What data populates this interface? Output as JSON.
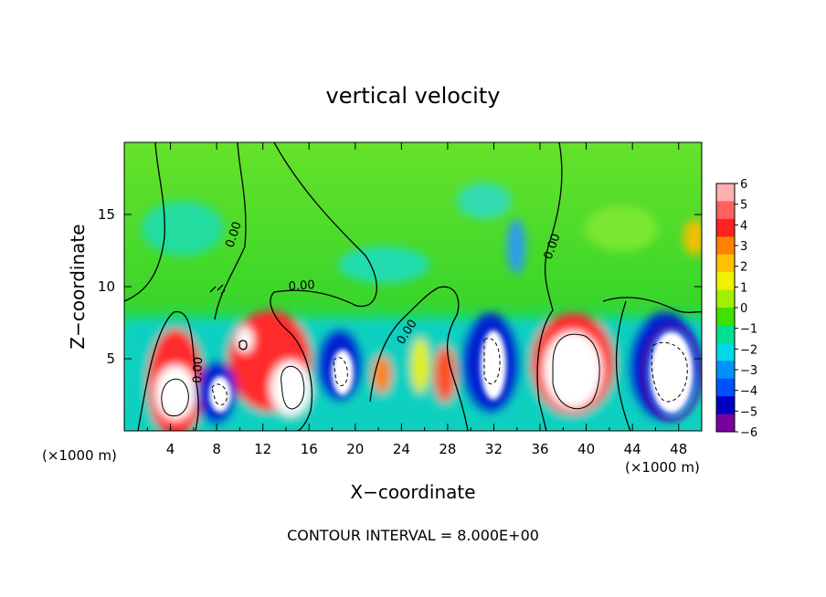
{
  "chart_data": {
    "type": "heatmap",
    "title": "vertical velocity",
    "xlabel": "X−coordinate",
    "ylabel": "Z−coordinate",
    "x_unit_left": "(×1000 m)",
    "x_unit_right": "(×1000 m)",
    "x_ticks": [
      "4",
      "8",
      "12",
      "16",
      "20",
      "24",
      "28",
      "32",
      "36",
      "40",
      "44",
      "48"
    ],
    "y_ticks": [
      "5",
      "10",
      "15"
    ],
    "xlim": [
      0,
      50
    ],
    "ylim": [
      0,
      20
    ],
    "colorbar": {
      "labels": [
        "6",
        "5",
        "4",
        "3",
        "2",
        "1",
        "0",
        "−1",
        "−2",
        "−3",
        "−4",
        "−5",
        "−6"
      ],
      "colors": [
        "#ffb0b0",
        "#ff6060",
        "#ff2020",
        "#ff8000",
        "#ffc000",
        "#f0f000",
        "#a0f000",
        "#40e000",
        "#00e090",
        "#00d8e8",
        "#0090ff",
        "#0050ff",
        "#0000c0",
        "#7a00a0"
      ]
    },
    "contour_labels": [
      "0.00",
      "0.00",
      "0.00",
      "0.00",
      "0.00"
    ],
    "footer": "CONTOUR INTERVAL = 8.000E+00"
  }
}
